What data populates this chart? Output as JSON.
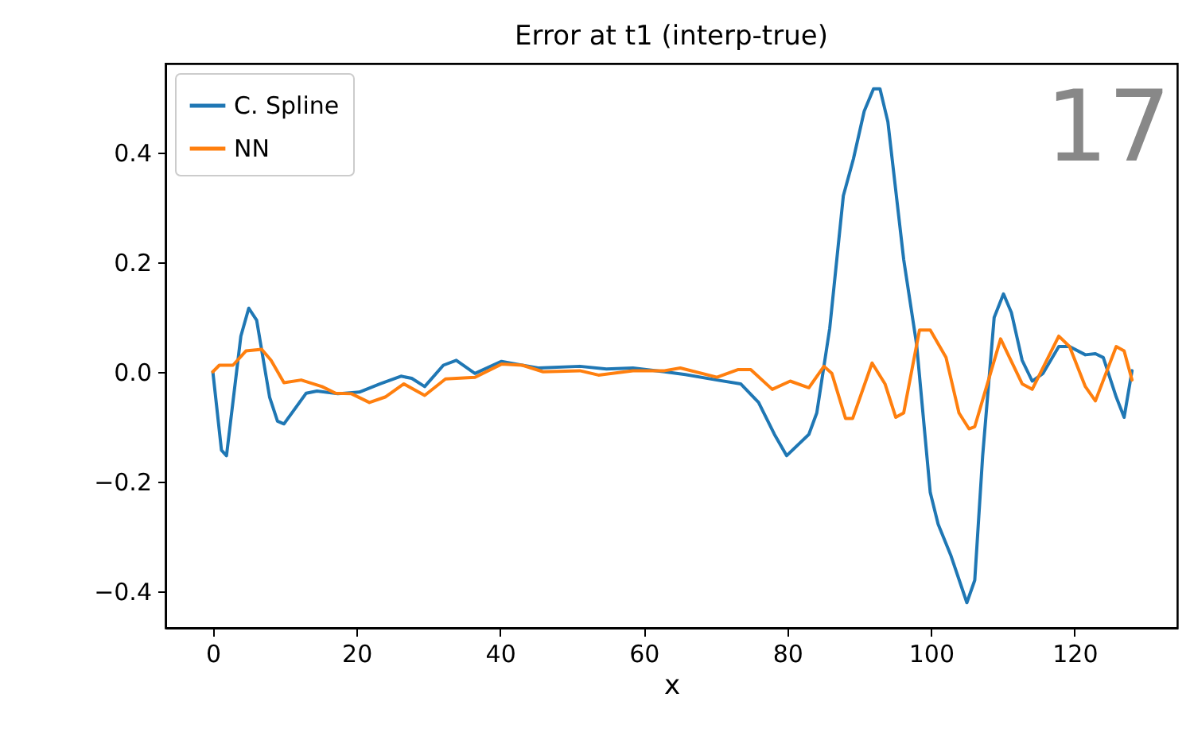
{
  "chart_data": {
    "type": "line",
    "title": "Error at t1 (interp-true)",
    "xlabel": "x",
    "annotations": [
      "17"
    ],
    "legend": "top left",
    "grid": false,
    "line_style": "solid",
    "marker": "none",
    "xlim": [
      -6.6,
      134.3
    ],
    "ylim": [
      -0.467,
      0.562
    ],
    "xticks": [
      0,
      20,
      40,
      60,
      80,
      100,
      120
    ],
    "yticks": [
      {
        "value": -0.4,
        "label": "−0.4"
      },
      {
        "value": -0.2,
        "label": "−0.2"
      },
      {
        "value": 0,
        "label": "0.0"
      },
      {
        "value": 0.2,
        "label": "0.2"
      },
      {
        "value": 0.4,
        "label": "0.4"
      }
    ],
    "series": [
      {
        "name": "C. Spline",
        "color": "#1f77b4",
        "x": [
          0,
          1.2,
          1.9,
          3.9,
          5.0,
          6.1,
          7.9,
          9.0,
          9.9,
          13.0,
          14.5,
          17.4,
          20.4,
          23.3,
          26.2,
          27.7,
          29.5,
          32.1,
          33.9,
          36.5,
          40.2,
          42.3,
          45.3,
          51.1,
          54.8,
          58.5,
          62.9,
          65.8,
          70.2,
          73.5,
          76.0,
          78.2,
          79.9,
          83.0,
          84.1,
          85.9,
          87.8,
          89.2,
          90.7,
          92.0,
          92.9,
          94.0,
          96.2,
          98.0,
          99.9,
          101.0,
          102.8,
          105.0,
          106.1,
          107.2,
          108.8,
          110.1,
          111.2,
          112.7,
          114.1,
          115.6,
          117.8,
          119.3,
          121.5,
          122.9,
          124.0,
          125.8,
          126.9,
          128.0
        ],
        "values": [
          0,
          -0.143,
          -0.153,
          0.065,
          0.116,
          0.094,
          -0.046,
          -0.09,
          -0.095,
          -0.039,
          -0.035,
          -0.04,
          -0.037,
          -0.022,
          -0.008,
          -0.012,
          -0.027,
          0.012,
          0.021,
          -0.003,
          0.019,
          0.014,
          0.007,
          0.01,
          0.005,
          0.007,
          0,
          -0.005,
          -0.015,
          -0.022,
          -0.056,
          -0.114,
          -0.153,
          -0.114,
          -0.075,
          0.079,
          0.321,
          0.388,
          0.475,
          0.516,
          0.516,
          0.456,
          0.205,
          0.05,
          -0.22,
          -0.278,
          -0.336,
          -0.421,
          -0.38,
          -0.153,
          0.099,
          0.142,
          0.108,
          0.021,
          -0.017,
          -0.003,
          0.046,
          0.046,
          0.031,
          0.033,
          0.026,
          -0.046,
          -0.083,
          0.002
        ]
      },
      {
        "name": "NN",
        "color": "#ff7f0e",
        "x": [
          0,
          0.9,
          2.8,
          4.6,
          6.8,
          8.1,
          9.9,
          12.3,
          15.2,
          17.1,
          19.3,
          21.8,
          24.0,
          26.6,
          29.5,
          32.4,
          36.5,
          40.2,
          43.1,
          46.0,
          51.1,
          53.7,
          58.5,
          62.9,
          65.1,
          70.2,
          73.1,
          74.9,
          77.9,
          80.4,
          83.0,
          85.1,
          86.2,
          88.1,
          89.1,
          91.8,
          93.6,
          95.1,
          96.2,
          98.4,
          99.9,
          102.1,
          103.9,
          105.3,
          106.1,
          109.7,
          112.7,
          114.1,
          117.8,
          119.3,
          121.5,
          122.9,
          125.8,
          126.9,
          128.0
        ],
        "values": [
          0,
          0.012,
          0.012,
          0.038,
          0.041,
          0.021,
          -0.02,
          -0.015,
          -0.027,
          -0.039,
          -0.04,
          -0.056,
          -0.046,
          -0.022,
          -0.043,
          -0.013,
          -0.01,
          0.014,
          0.012,
          0,
          0.002,
          -0.006,
          0.002,
          0.002,
          0.007,
          -0.01,
          0.004,
          0.004,
          -0.032,
          -0.017,
          -0.029,
          0.01,
          -0.003,
          -0.085,
          -0.085,
          0.016,
          -0.022,
          -0.083,
          -0.075,
          0.076,
          0.076,
          0.026,
          -0.075,
          -0.104,
          -0.1,
          0.06,
          -0.022,
          -0.032,
          0.065,
          0.046,
          -0.027,
          -0.053,
          0.046,
          0.038,
          -0.015
        ]
      }
    ]
  }
}
